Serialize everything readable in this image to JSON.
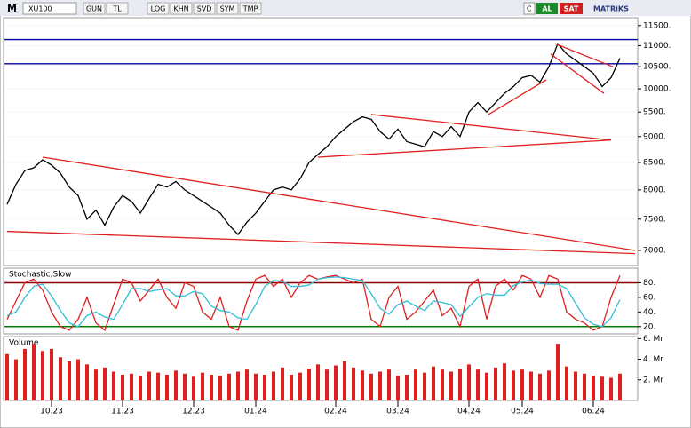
{
  "toolbar": {
    "logo": "M",
    "symbol": "XU100",
    "buttons": [
      "GUN",
      "TL",
      "LOG",
      "KHN",
      "SVD",
      "SYM",
      "TMP"
    ],
    "c": "C",
    "buy": "AL",
    "sell": "SAT",
    "brand": "MATRiKS"
  },
  "chart_data": [
    {
      "type": "line",
      "log_scale": true,
      "grid": true,
      "color": "#000000",
      "categories": [
        null,
        null,
        null,
        null,
        null,
        "10.23",
        null,
        null,
        null,
        null,
        null,
        null,
        null,
        "11.23",
        null,
        null,
        null,
        null,
        null,
        null,
        null,
        "12.23",
        null,
        null,
        null,
        null,
        null,
        null,
        "01.24",
        null,
        null,
        null,
        null,
        null,
        null,
        null,
        null,
        "02.24",
        null,
        null,
        null,
        null,
        null,
        null,
        "03.24",
        null,
        null,
        null,
        null,
        null,
        null,
        null,
        "04.24",
        null,
        null,
        null,
        null,
        null,
        "05.24",
        null,
        null,
        null,
        null,
        null,
        null,
        null,
        "06.24",
        null,
        null,
        null
      ],
      "values": [
        7750,
        8100,
        8350,
        8400,
        8550,
        8450,
        8300,
        8050,
        7900,
        7500,
        7650,
        7400,
        7700,
        7900,
        7800,
        7600,
        7850,
        8100,
        8050,
        8150,
        8000,
        7900,
        7800,
        7700,
        7600,
        7400,
        7250,
        7450,
        7600,
        7800,
        8000,
        8050,
        8000,
        8200,
        8500,
        8650,
        8800,
        9000,
        9150,
        9300,
        9400,
        9350,
        9100,
        8950,
        9150,
        8900,
        8850,
        8800,
        9100,
        9000,
        9200,
        9000,
        9500,
        9700,
        9500,
        9700,
        9900,
        10050,
        10250,
        10300,
        10150,
        10500,
        11050,
        10800,
        10650,
        10500,
        10350,
        10050,
        10250,
        10700
      ],
      "ylim": [
        6770,
        11700
      ],
      "yticks": [
        {
          "value": 11500,
          "label": "11500."
        },
        {
          "value": 11000,
          "label": "11000."
        },
        {
          "value": 10500,
          "label": "10500."
        },
        {
          "value": 10000,
          "label": "10000."
        },
        {
          "value": 9500,
          "label": "9500."
        },
        {
          "value": 9000,
          "label": "9000."
        },
        {
          "value": 8500,
          "label": "8500."
        },
        {
          "value": 8000,
          "label": "8000."
        },
        {
          "value": 7500,
          "label": "7500."
        },
        {
          "value": 7000,
          "label": "7000."
        }
      ],
      "horizontal_lines": {
        "color": "#0000aa",
        "values": [
          11150,
          10570
        ]
      },
      "trend_lines": {
        "color": "#e02020",
        "lines": [
          [
            4,
            8600,
            70.7,
            7000
          ],
          [
            0,
            7300,
            70.7,
            6950
          ],
          [
            41,
            9450,
            68,
            8930
          ],
          [
            35,
            8600,
            68,
            8930
          ],
          [
            54.2,
            9450,
            60.7,
            10200
          ],
          [
            61.7,
            11050,
            68.2,
            10500
          ],
          [
            61.2,
            10800,
            67.2,
            9900
          ]
        ]
      }
    },
    {
      "type": "line",
      "title": "Stochastic,Slow",
      "series": [
        {
          "color": "#e02020",
          "values": [
            30,
            55,
            80,
            85,
            70,
            40,
            20,
            15,
            30,
            60,
            25,
            15,
            50,
            85,
            80,
            55,
            70,
            85,
            60,
            45,
            80,
            75,
            40,
            30,
            60,
            20,
            15,
            55,
            85,
            90,
            75,
            85,
            60,
            80,
            90,
            85,
            88,
            90,
            85,
            80,
            85,
            30,
            20,
            60,
            75,
            30,
            40,
            55,
            70,
            35,
            45,
            20,
            75,
            85,
            30,
            75,
            85,
            70,
            90,
            85,
            60,
            90,
            85,
            40,
            30,
            25,
            15,
            20,
            60,
            90
          ]
        },
        {
          "color": "#30c0d8",
          "values": [
            35,
            40,
            60,
            75,
            78,
            62,
            42,
            25,
            20,
            35,
            40,
            33,
            30,
            50,
            72,
            72,
            68,
            70,
            72,
            62,
            62,
            68,
            65,
            48,
            42,
            40,
            32,
            30,
            50,
            75,
            83,
            82,
            75,
            75,
            77,
            85,
            87,
            88,
            87,
            85,
            83,
            65,
            45,
            37,
            50,
            55,
            48,
            42,
            55,
            53,
            50,
            34,
            47,
            60,
            65,
            63,
            63,
            76,
            81,
            84,
            79,
            78,
            78,
            72,
            52,
            32,
            23,
            20,
            32,
            57
          ]
        }
      ],
      "ylim": [
        10,
        100
      ],
      "yticks": [
        {
          "value": 80,
          "label": "80."
        },
        {
          "value": 60,
          "label": "60."
        },
        {
          "value": 40,
          "label": "40."
        },
        {
          "value": 20,
          "label": "20."
        }
      ],
      "levels": [
        {
          "value": 80,
          "color": "#8b0000"
        },
        {
          "value": 20,
          "color": "#008000"
        }
      ]
    },
    {
      "type": "bar",
      "title": "Volume",
      "color": "#e02020",
      "values": [
        4.5,
        4.0,
        5.0,
        5.5,
        4.8,
        5.0,
        4.2,
        3.8,
        4.0,
        3.5,
        3.0,
        3.2,
        2.8,
        2.5,
        2.6,
        2.4,
        2.8,
        2.7,
        2.5,
        2.9,
        2.6,
        2.3,
        2.7,
        2.5,
        2.4,
        2.6,
        2.8,
        3.0,
        2.6,
        2.5,
        2.8,
        3.2,
        2.5,
        2.7,
        3.1,
        3.5,
        3.0,
        3.4,
        3.8,
        3.2,
        2.9,
        2.6,
        2.8,
        3.0,
        2.4,
        2.5,
        3.0,
        2.7,
        3.3,
        3.0,
        2.8,
        3.1,
        3.5,
        3.0,
        2.7,
        3.2,
        3.6,
        2.9,
        3.0,
        2.8,
        2.6,
        2.9,
        5.5,
        3.3,
        2.8,
        2.6,
        2.4,
        2.3,
        2.2,
        2.6
      ],
      "ylim": [
        0,
        6.2
      ],
      "yticks": [
        {
          "value": 6,
          "label": "6. Mr"
        },
        {
          "value": 4,
          "label": "4. Mr"
        },
        {
          "value": 2,
          "label": "2. Mr"
        }
      ]
    }
  ]
}
